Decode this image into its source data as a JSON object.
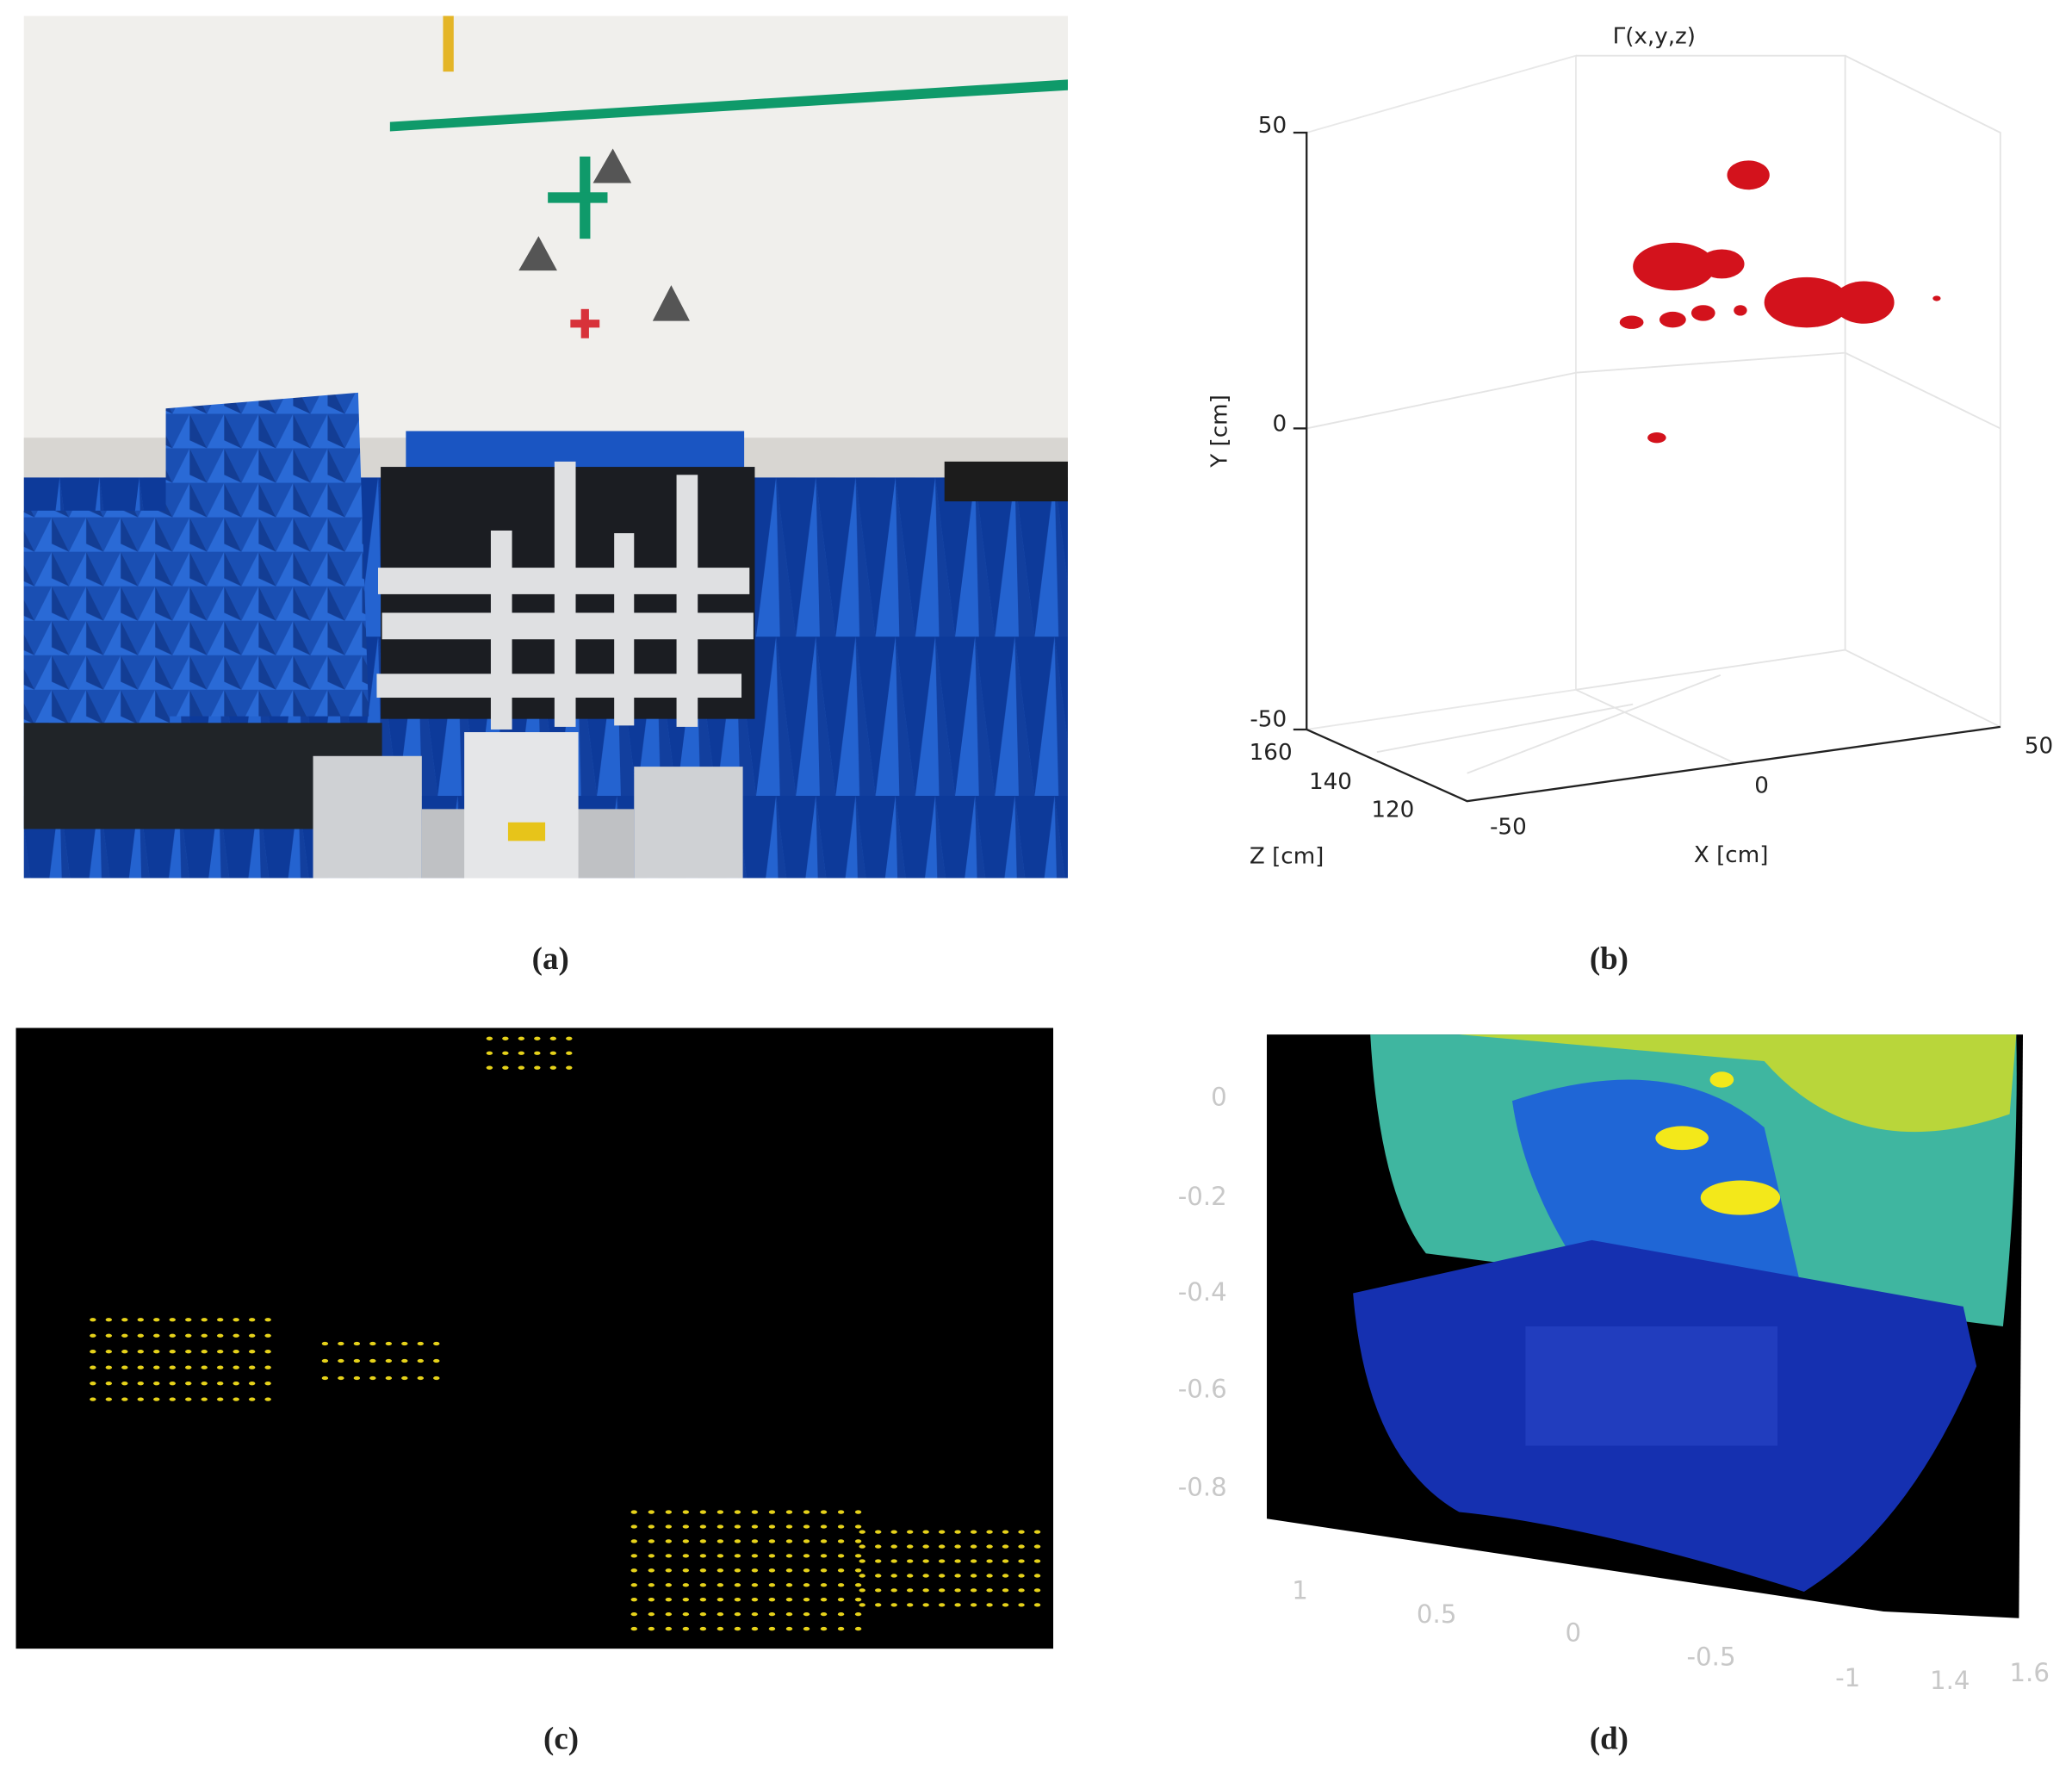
{
  "panels": [
    {
      "label": "(a)"
    },
    {
      "label": "(b)",
      "title": "Γ(x,y,z)",
      "y_label": "Y [cm]",
      "z_label": "Z [cm]",
      "x_label": "X [cm]",
      "y_ticks": [
        "50",
        "0",
        "-50"
      ],
      "z_ticks": [
        "160",
        "140",
        "120"
      ],
      "x_ticks": [
        "-50",
        "0",
        "50"
      ]
    },
    {
      "label": "(c)"
    },
    {
      "label": "(d)",
      "y_ticks": [
        "0",
        "-0.2",
        "-0.4",
        "-0.6",
        "-0.8"
      ],
      "x_ticks": [
        "1",
        "0.5",
        "0",
        "-0.5",
        "-1"
      ],
      "z_ticks": [
        "1.4",
        "1.6"
      ]
    }
  ]
}
